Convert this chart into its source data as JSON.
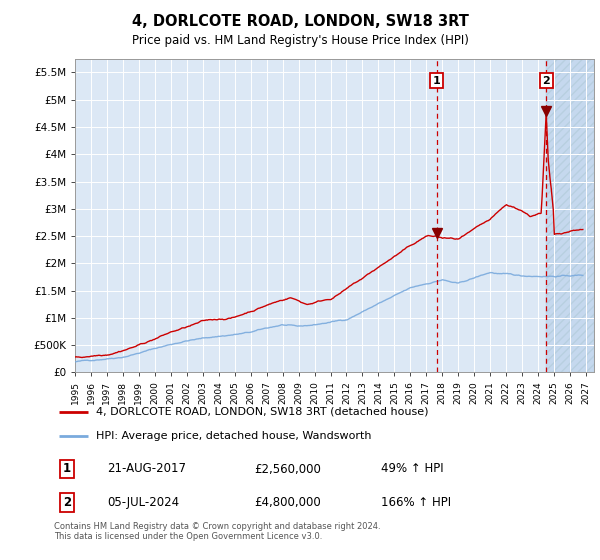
{
  "title": "4, DORLCOTE ROAD, LONDON, SW18 3RT",
  "subtitle": "Price paid vs. HM Land Registry's House Price Index (HPI)",
  "ylim": [
    0,
    5750000
  ],
  "xlim_start": 1995.0,
  "xlim_end": 2027.5,
  "background_color": "#dce8f5",
  "sale1_x": 2017.64,
  "sale1_y": 2560000,
  "sale1_label": "1",
  "sale1_date": "21-AUG-2017",
  "sale1_price": "£2,560,000",
  "sale1_hpi": "49% ↑ HPI",
  "sale2_x": 2024.51,
  "sale2_y": 4800000,
  "sale2_label": "2",
  "sale2_date": "05-JUL-2024",
  "sale2_price": "£4,800,000",
  "sale2_hpi": "166% ↑ HPI",
  "red_line_color": "#cc0000",
  "blue_line_color": "#7aaadd",
  "marker_color": "#880000",
  "legend_line1": "4, DORLCOTE ROAD, LONDON, SW18 3RT (detached house)",
  "legend_line2": "HPI: Average price, detached house, Wandsworth",
  "footnote": "Contains HM Land Registry data © Crown copyright and database right 2024.\nThis data is licensed under the Open Government Licence v3.0.",
  "ytick_labels": [
    "£0",
    "£500K",
    "£1M",
    "£1.5M",
    "£2M",
    "£2.5M",
    "£3M",
    "£3.5M",
    "£4M",
    "£4.5M",
    "£5M",
    "£5.5M"
  ],
  "ytick_values": [
    0,
    500000,
    1000000,
    1500000,
    2000000,
    2500000,
    3000000,
    3500000,
    4000000,
    4500000,
    5000000,
    5500000
  ]
}
